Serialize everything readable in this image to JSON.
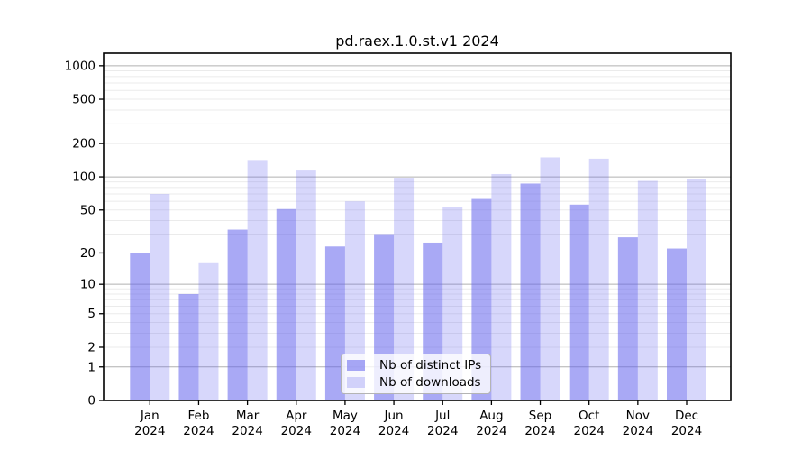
{
  "chart_data": {
    "type": "bar",
    "title": "pd.raex.1.0.st.v1 2024",
    "categories": [
      "Jan 2024",
      "Feb 2024",
      "Mar 2024",
      "Apr 2024",
      "May 2024",
      "Jun 2024",
      "Jul 2024",
      "Aug 2024",
      "Sep 2024",
      "Oct 2024",
      "Nov 2024",
      "Dec 2024"
    ],
    "series": [
      {
        "name": "Nb of distinct IPs",
        "color": "rgba(102,102,238,0.56)",
        "values": [
          20,
          8,
          33,
          51,
          23,
          30,
          25,
          63,
          87,
          56,
          28,
          22
        ]
      },
      {
        "name": "Nb of downloads",
        "color": "rgba(102,102,238,0.26)",
        "values": [
          70,
          16,
          142,
          114,
          60,
          98,
          53,
          106,
          150,
          146,
          92,
          95
        ]
      }
    ],
    "y_axis": {
      "ticks": [
        0,
        1,
        2,
        5,
        10,
        20,
        50,
        100,
        200,
        500,
        1000
      ],
      "scale": "log10(1+value)",
      "range": [
        0,
        1300
      ]
    },
    "grid": {
      "horizontal": true,
      "major_at": [
        1,
        10,
        100,
        1000
      ],
      "minor": true
    },
    "legend": {
      "position": "lower center"
    }
  },
  "colors": {
    "background": "#ffffff",
    "axis_frame": "#000000",
    "grid_major": "#b0b0b0",
    "grid_minor": "#ebebeb",
    "tick_text": "#000000"
  }
}
